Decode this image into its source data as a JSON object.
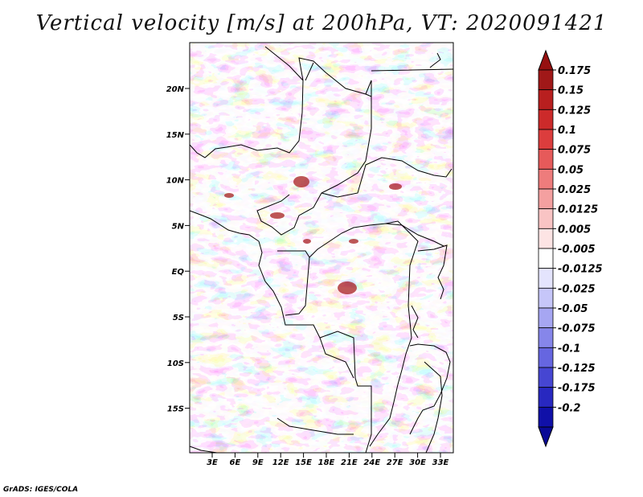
{
  "title": "Vertical velocity [m/s] at 200hPa, VT: 2020091421",
  "credit": "GrADS: IGES/COLA",
  "map": {
    "lat_labels": [
      "20N",
      "15N",
      "10N",
      "5N",
      "EQ",
      "5S",
      "10S",
      "15S"
    ],
    "lon_labels": [
      "3E",
      "6E",
      "9E",
      "12E",
      "15E",
      "18E",
      "21E",
      "24E",
      "27E",
      "30E",
      "33E"
    ]
  },
  "colorbar": {
    "labels": [
      "0.175",
      "0.15",
      "0.125",
      "0.1",
      "0.075",
      "0.05",
      "0.025",
      "0.0125",
      "0.005",
      "-0.005",
      "-0.0125",
      "-0.025",
      "-0.05",
      "-0.075",
      "-0.1",
      "-0.125",
      "-0.175",
      "-0.2"
    ],
    "colors": [
      "#a01818",
      "#b81f1f",
      "#cc2a2a",
      "#dc3d3d",
      "#e65a5a",
      "#ee7c7c",
      "#f4a0a0",
      "#f9c4c4",
      "#fde4e4",
      "#ffffff",
      "#e4e4fd",
      "#c6c6f9",
      "#a6a6f2",
      "#8686ea",
      "#6666e0",
      "#4646d2",
      "#2828c0",
      "#1010a8"
    ],
    "top_color": "#961010",
    "bottom_color": "#0a0a96"
  }
}
